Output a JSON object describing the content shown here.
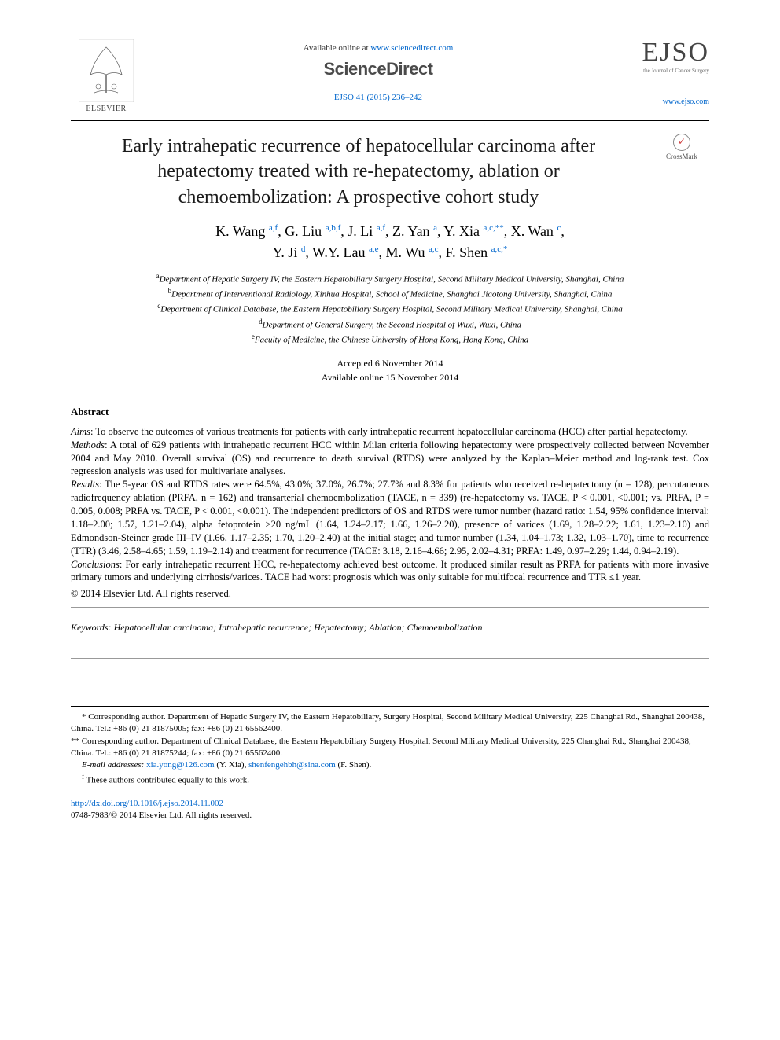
{
  "header": {
    "elsevier_label": "ELSEVIER",
    "available_prefix": "Available online at ",
    "available_url": "www.sciencedirect.com",
    "sciencedirect": "ScienceDirect",
    "citation": "EJSO 41 (2015) 236–242",
    "ejso": "EJSO",
    "ejso_sub": "the Journal of Cancer Surgery",
    "journal_url": "www.ejso.com",
    "crossmark": "CrossMark"
  },
  "title": "Early intrahepatic recurrence of hepatocellular carcinoma after hepatectomy treated with re-hepatectomy, ablation or chemoembolization: A prospective cohort study",
  "authors_line1_html": "K. Wang <sup class='sup'>a,f</sup>, G. Liu <sup class='sup'>a,b,f</sup>, J. Li <sup class='sup'>a,f</sup>, Z. Yan <sup class='sup'>a</sup>, Y. Xia <sup class='sup'>a,c,**</sup>, X. Wan <sup class='sup'>c</sup>,",
  "authors_line2_html": "Y. Ji <sup class='sup'>d</sup>, W.Y. Lau <sup class='sup'>a,e</sup>, M. Wu <sup class='sup'>a,c</sup>, F. Shen <sup class='sup'>a,c,*</sup>",
  "affiliations": [
    {
      "sup": "a",
      "text": "Department of Hepatic Surgery IV, the Eastern Hepatobiliary Surgery Hospital, Second Military Medical University, Shanghai, China"
    },
    {
      "sup": "b",
      "text": "Department of Interventional Radiology, Xinhua Hospital, School of Medicine, Shanghai Jiaotong University, Shanghai, China"
    },
    {
      "sup": "c",
      "text": "Department of Clinical Database, the Eastern Hepatobiliary Surgery Hospital, Second Military Medical University, Shanghai, China"
    },
    {
      "sup": "d",
      "text": "Department of General Surgery, the Second Hospital of Wuxi, Wuxi, China"
    },
    {
      "sup": "e",
      "text": "Faculty of Medicine, the Chinese University of Hong Kong, Hong Kong, China"
    }
  ],
  "dates": {
    "accepted": "Accepted 6 November 2014",
    "online": "Available online 15 November 2014"
  },
  "abstract": {
    "heading": "Abstract",
    "aims_label": "Aims",
    "aims": ": To observe the outcomes of various treatments for patients with early intrahepatic recurrent hepatocellular carcinoma (HCC) after partial hepatectomy.",
    "methods_label": "Methods",
    "methods": ": A total of 629 patients with intrahepatic recurrent HCC within Milan criteria following hepatectomy were prospectively collected between November 2004 and May 2010. Overall survival (OS) and recurrence to death survival (RTDS) were analyzed by the Kaplan–Meier method and log-rank test. Cox regression analysis was used for multivariate analyses.",
    "results_label": "Results",
    "results": ": The 5-year OS and RTDS rates were 64.5%, 43.0%; 37.0%, 26.7%; 27.7% and 8.3% for patients who received re-hepatectomy (n = 128), percutaneous radiofrequency ablation (PRFA, n = 162) and transarterial chemoembolization (TACE, n = 339) (re-hepatectomy vs. TACE, P < 0.001, <0.001; vs. PRFA, P = 0.005, 0.008; PRFA vs. TACE, P < 0.001, <0.001). The independent predictors of OS and RTDS were tumor number (hazard ratio: 1.54, 95% confidence interval: 1.18–2.00; 1.57, 1.21–2.04), alpha fetoprotein >20 ng/mL (1.64, 1.24–2.17; 1.66, 1.26–2.20), presence of varices (1.69, 1.28–2.22; 1.61, 1.23–2.10) and Edmondson-Steiner grade III–IV (1.66, 1.17–2.35; 1.70, 1.20–2.40) at the initial stage; and tumor number (1.34, 1.04–1.73; 1.32, 1.03–1.70), time to recurrence (TTR) (3.46, 2.58–4.65; 1.59, 1.19–2.14) and treatment for recurrence (TACE: 3.18, 2.16–4.66; 2.95, 2.02–4.31; PRFA: 1.49, 0.97–2.29; 1.44, 0.94–2.19).",
    "conclusions_label": "Conclusions",
    "conclusions": ": For early intrahepatic recurrent HCC, re-hepatectomy achieved best outcome. It produced similar result as PRFA for patients with more invasive primary tumors and underlying cirrhosis/varices. TACE had worst prognosis which was only suitable for multifocal recurrence and TTR ≤1 year.",
    "copyright": "© 2014 Elsevier Ltd. All rights reserved."
  },
  "keywords": {
    "label": "Keywords:",
    "text": " Hepatocellular carcinoma; Intrahepatic recurrence; Hepatectomy; Ablation; Chemoembolization"
  },
  "footnotes": {
    "corr1": "* Corresponding author. Department of Hepatic Surgery IV, the Eastern Hepatobiliary, Surgery Hospital, Second Military Medical University, 225 Changhai Rd., Shanghai 200438, China. Tel.: +86 (0) 21 81875005; fax: +86 (0) 21 65562400.",
    "corr2": "** Corresponding author. Department of Clinical Database, the Eastern Hepatobiliary Surgery Hospital, Second Military Medical University, 225 Changhai Rd., Shanghai 200438, China. Tel.: +86 (0) 21 81875244; fax: +86 (0) 21 65562400.",
    "email_label": "E-mail addresses:",
    "email1": "xia.yong@126.com",
    "email1_name": " (Y. Xia), ",
    "email2": "shenfengehbh@sina.com",
    "email2_name": " (F. Shen).",
    "contrib": "f These authors contributed equally to this work."
  },
  "doi": {
    "url": "http://dx.doi.org/10.1016/j.ejso.2014.11.002",
    "issn_line": "0748-7983/© 2014 Elsevier Ltd. All rights reserved."
  },
  "colors": {
    "link": "#0066cc",
    "text": "#000000",
    "rule": "#000000"
  }
}
